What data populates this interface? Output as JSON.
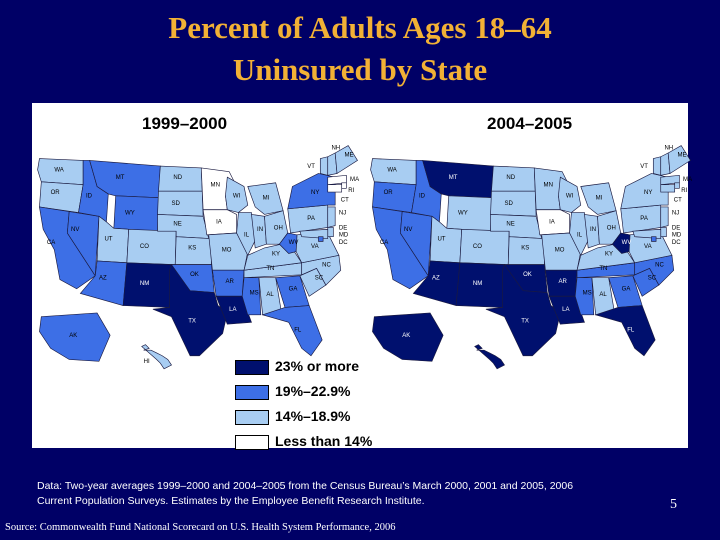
{
  "title": {
    "line1": "Percent of Adults Ages 18–64",
    "line2": "Uninsured by State"
  },
  "periods": [
    "1999–2000",
    "2004–2005"
  ],
  "colors": {
    "c1": "#ffffff",
    "c2": "#a8cdf2",
    "c3": "#3d6fe6",
    "c4": "#00106e",
    "background": "#000066",
    "title": "#F2B135"
  },
  "legend": [
    {
      "label": "23% or more",
      "cls": "c4"
    },
    {
      "label": "19%–22.9%",
      "cls": "c3"
    },
    {
      "label": "14%–18.9%",
      "cls": "c2"
    },
    {
      "label": "Less than 14%",
      "cls": "c1"
    }
  ],
  "maps": [
    {
      "states": {
        "WA": "c2",
        "OR": "c2",
        "CA": "c3",
        "NV": "c3",
        "ID": "c3",
        "MT": "c3",
        "WY": "c3",
        "UT": "c2",
        "AZ": "c3",
        "NM": "c4",
        "CO": "c2",
        "ND": "c2",
        "SD": "c2",
        "NE": "c2",
        "KS": "c2",
        "OK": "c3",
        "TX": "c4",
        "MN": "c1",
        "IA": "c1",
        "MO": "c2",
        "AR": "c3",
        "LA": "c4",
        "WI": "c2",
        "IL": "c2",
        "MS": "c3",
        "AL": "c2",
        "TN": "c2",
        "KY": "c2",
        "IN": "c2",
        "OH": "c2",
        "MI": "c2",
        "WV": "c3",
        "GA": "c3",
        "FL": "c3",
        "SC": "c2",
        "NC": "c2",
        "VA": "c2",
        "PA": "c2",
        "NY": "c3",
        "VT": "c2",
        "NH": "c2",
        "ME": "c2",
        "MA": "c1",
        "RI": "c1",
        "CT": "c1",
        "NJ": "c2",
        "DE": "c2",
        "MD": "c2",
        "DC": "c3",
        "AK": "c3",
        "HI": "c2"
      }
    },
    {
      "states": {
        "WA": "c2",
        "OR": "c3",
        "CA": "c3",
        "NV": "c3",
        "ID": "c3",
        "MT": "c4",
        "WY": "c2",
        "UT": "c2",
        "AZ": "c4",
        "NM": "c4",
        "CO": "c2",
        "ND": "c2",
        "SD": "c2",
        "NE": "c2",
        "KS": "c2",
        "OK": "c4",
        "TX": "c4",
        "MN": "c2",
        "IA": "c1",
        "MO": "c2",
        "AR": "c4",
        "LA": "c4",
        "WI": "c2",
        "IL": "c2",
        "MS": "c3",
        "AL": "c2",
        "TN": "c3",
        "KY": "c2",
        "IN": "c2",
        "OH": "c2",
        "MI": "c2",
        "WV": "c4",
        "GA": "c3",
        "FL": "c4",
        "SC": "c3",
        "NC": "c3",
        "VA": "c2",
        "PA": "c2",
        "NY": "c2",
        "VT": "c2",
        "NH": "c2",
        "ME": "c2",
        "MA": "c2",
        "RI": "c2",
        "CT": "c2",
        "NJ": "c2",
        "DE": "c2",
        "MD": "c2",
        "DC": "c3",
        "AK": "c4",
        "HI": "c4"
      }
    }
  ],
  "note": "Data: Two-year averages 1999–2000 and 2004–2005 from the Census Bureau’s March 2000, 2001 and 2005, 2006 Current Population Surveys. Estimates by the Employee Benefit Research Institute.",
  "source": "Source: Commonwealth Fund National Scorecard on U.S. Health System Performance, 2006",
  "page_number": "5"
}
